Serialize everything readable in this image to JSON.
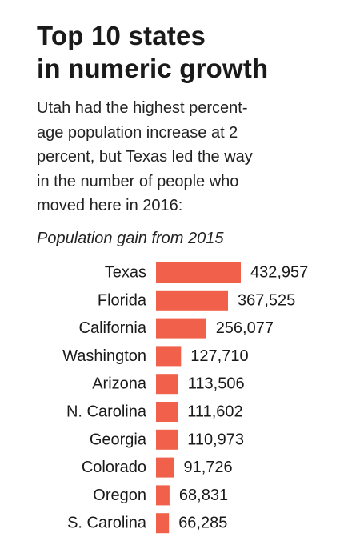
{
  "header": {
    "title_lines": [
      "Top 10 states",
      "in numeric growth"
    ],
    "description_lines": [
      "Utah had the highest percent-",
      "age population increase at 2",
      "percent, but Texas led the way",
      "in the number of people who",
      "moved here in 2016:"
    ]
  },
  "chart_data": {
    "type": "bar",
    "orientation": "horizontal",
    "title": "Population gain from 2015",
    "categories": [
      "Texas",
      "Florida",
      "California",
      "Washington",
      "Arizona",
      "N. Carolina",
      "Georgia",
      "Colorado",
      "Oregon",
      "S. Carolina"
    ],
    "values": [
      432957,
      367525,
      256077,
      127710,
      113506,
      111602,
      110973,
      91726,
      68831,
      66285
    ],
    "data_labels": [
      "432,957",
      "367,525",
      "256,077",
      "127,710",
      "113,506",
      "111,602",
      "110,973",
      "91,726",
      "68,831",
      "66,285"
    ],
    "bar_color": "#f0604a",
    "xlabel": "",
    "ylabel": "",
    "grid": false,
    "legend": "none"
  }
}
